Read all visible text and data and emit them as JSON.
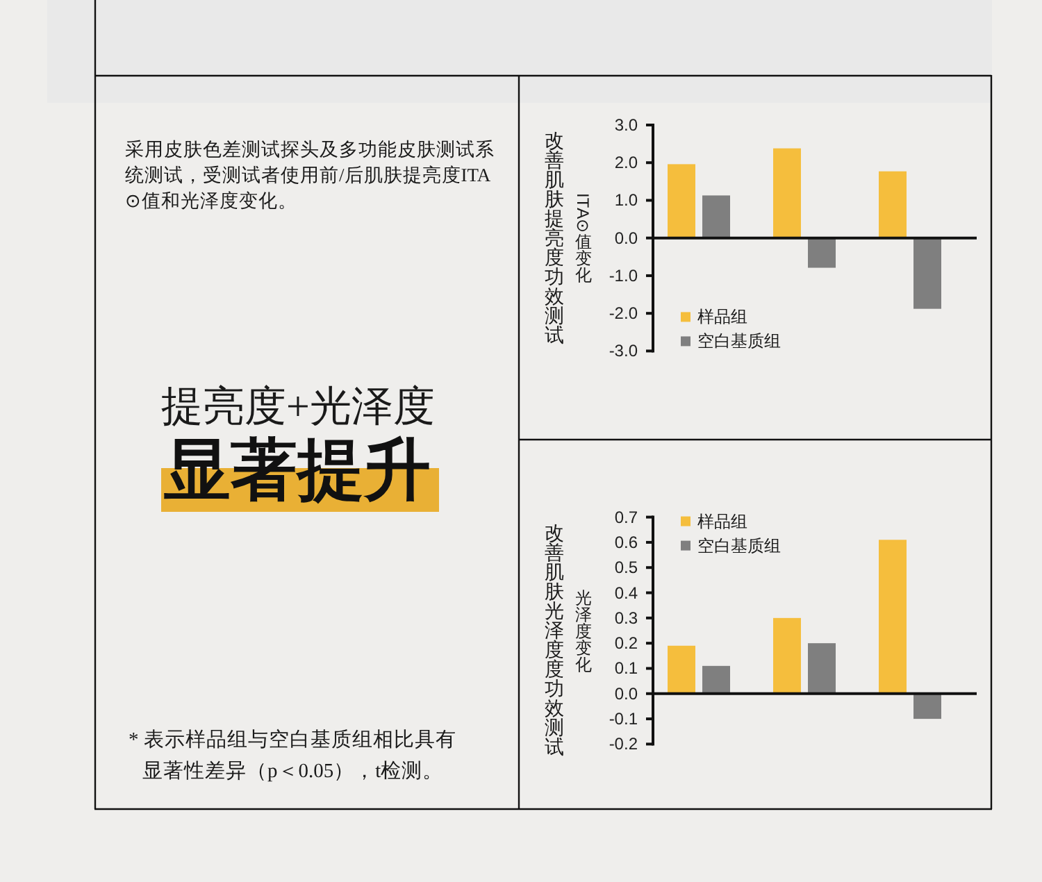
{
  "chart_data": [
    {
      "type": "other",
      "title": "提亮度+光泽度",
      "subtitle": "显著提升",
      "annotations": [
        "采用皮肤色差测试探头及多功能皮肤测试系统测试，受测试者使用前/后肌肤提亮度ITA⊙值和光泽度变化。",
        "* 表示样品组与空白基质组相比具有显著性差异（p＜0.05），t检测。"
      ]
    },
    {
      "type": "bar",
      "title": "改善肌肤提亮度功效测试",
      "ylabel": "ITA⊙值变化",
      "categories": [
        null,
        null,
        null
      ],
      "series": [
        {
          "name": "样品组",
          "color": "#f5be3d",
          "values": [
            1.96,
            2.38,
            1.77
          ]
        },
        {
          "name": "空白基质组",
          "color": "#7f7f7f",
          "values": [
            1.13,
            -0.79,
            -1.88
          ]
        }
      ],
      "ylim": [
        -3,
        3
      ],
      "yticks": [
        {
          "value": 3,
          "label": "3.0"
        },
        {
          "value": 2,
          "label": "2.0"
        },
        {
          "value": 1,
          "label": "1.0"
        },
        {
          "value": 0,
          "label": "0.0"
        },
        {
          "value": -1,
          "label": "-1.0"
        },
        {
          "value": -2,
          "label": "-2.0"
        },
        {
          "value": -3,
          "label": "-3.0"
        }
      ],
      "tick_labels": "y",
      "legend": "bottom left"
    },
    {
      "type": "bar",
      "title": "改善肌肤光泽度度功效测试",
      "ylabel": "光泽度变化",
      "categories": [
        null,
        null,
        null
      ],
      "series": [
        {
          "name": "样品组",
          "color": "#f5be3d",
          "values": [
            0.19,
            0.3,
            0.61
          ]
        },
        {
          "name": "空白基质组",
          "color": "#7f7f7f",
          "values": [
            0.11,
            0.2,
            -0.1
          ]
        }
      ],
      "ylim": [
        -0.2,
        0.7
      ],
      "yticks": [
        0.7,
        0.6,
        0.5,
        0.4,
        0.3,
        0.2,
        0.1,
        {
          "value": 0,
          "label": "0.0"
        },
        -0.1,
        -0.2
      ],
      "tick_labels": "y",
      "legend": "top left"
    }
  ]
}
